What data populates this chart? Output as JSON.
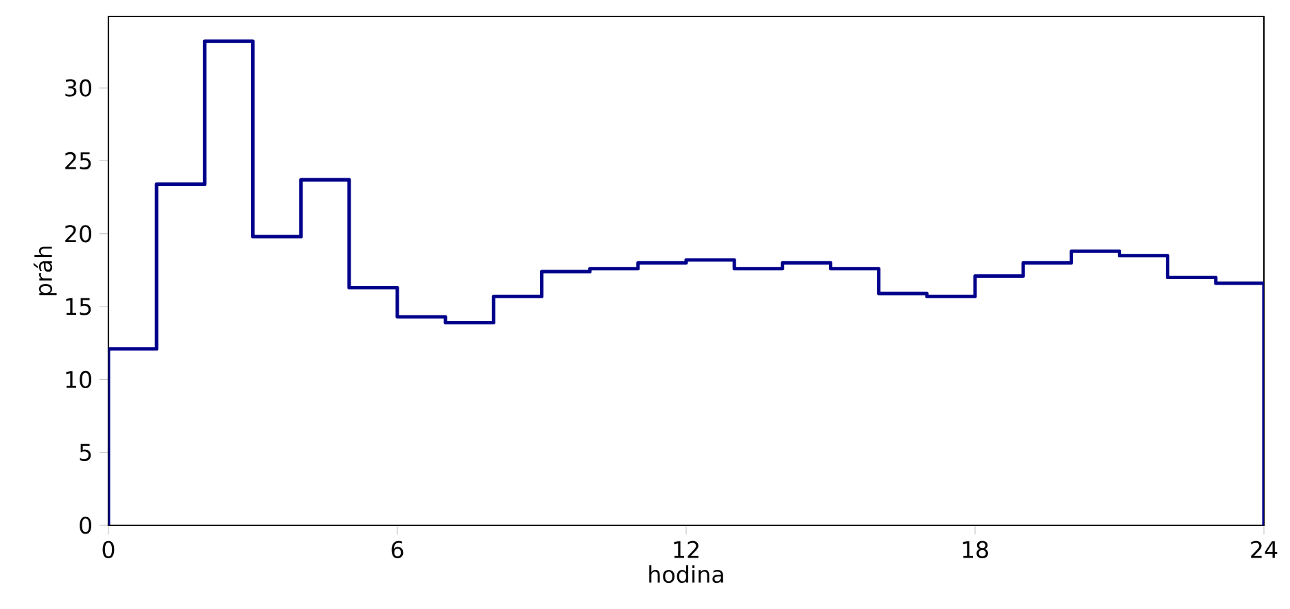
{
  "chart_data": {
    "type": "histogram",
    "xlabel": "hodina",
    "ylabel": "práh",
    "color": "#00008b",
    "bins": [
      0,
      1,
      2,
      3,
      4,
      5,
      6,
      7,
      8,
      9,
      10,
      11,
      12,
      13,
      14,
      15,
      16,
      17,
      18,
      19,
      20,
      21,
      22,
      23,
      24
    ],
    "values": [
      12.1,
      23.4,
      33.2,
      19.8,
      23.7,
      16.3,
      14.3,
      13.9,
      15.7,
      17.4,
      17.6,
      18.0,
      18.2,
      17.6,
      18.0,
      17.6,
      15.9,
      15.7,
      17.1,
      18.0,
      18.8,
      18.5,
      17.0,
      16.6
    ],
    "xlim": [
      0,
      24
    ],
    "xticks": [
      0,
      6,
      12,
      18,
      24
    ],
    "ylim": [
      0,
      34.9
    ],
    "yticks": [
      0,
      5,
      10,
      15,
      20,
      25,
      30
    ],
    "grid": false
  }
}
